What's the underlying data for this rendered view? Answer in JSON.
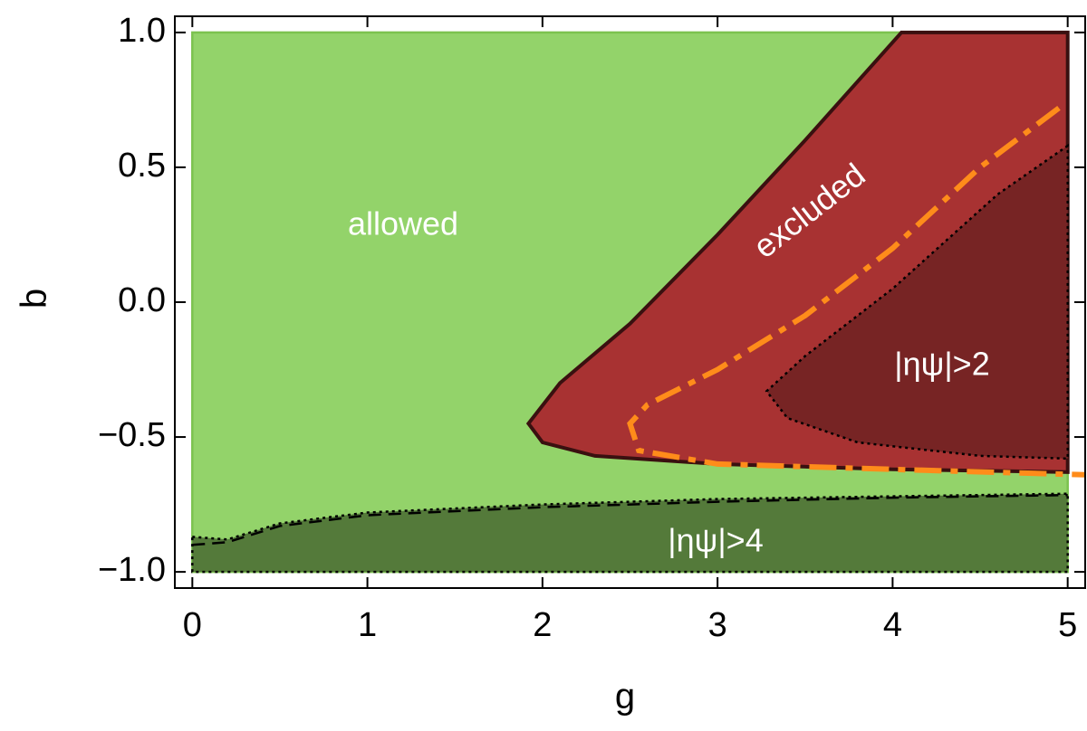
{
  "chart_data": {
    "type": "region",
    "xlabel": "g",
    "ylabel": "b",
    "xlim": [
      -0.1,
      5.1
    ],
    "ylim": [
      -1.06,
      1.06
    ],
    "xticks": [
      0,
      1,
      2,
      3,
      4,
      5
    ],
    "yticks": [
      {
        "value": -1,
        "label": "−1.0"
      },
      {
        "value": -0.5,
        "label": "−0.5"
      },
      {
        "value": 0,
        "label": "0.0"
      },
      0.5,
      {
        "value": 1,
        "label": "1.0"
      }
    ],
    "regions": [
      {
        "color": "#93d36a",
        "edge": "#7cc24f",
        "x": [
          0,
          5,
          5,
          0
        ],
        "y": [
          -1,
          -1,
          1,
          1
        ]
      },
      {
        "color": "#a83232",
        "edge": "#3a1010",
        "x": [
          4.05,
          3.5,
          3.0,
          2.5,
          2.1,
          1.92,
          2.0,
          2.3,
          3.0,
          4.0,
          5.0,
          5.0
        ],
        "y": [
          1.0,
          0.6,
          0.25,
          -0.08,
          -0.3,
          -0.45,
          -0.52,
          -0.57,
          -0.6,
          -0.62,
          -0.63,
          1.0
        ]
      },
      {
        "color": "#772424",
        "edge": "#000000",
        "x": [
          5.0,
          4.6,
          4.0,
          3.5,
          3.28,
          3.4,
          3.8,
          4.5,
          5.0
        ],
        "y": [
          0.58,
          0.4,
          0.05,
          -0.2,
          -0.33,
          -0.43,
          -0.52,
          -0.57,
          -0.58
        ]
      },
      {
        "color": "#547a3a",
        "edge": "#000000",
        "x": [
          0,
          0.2,
          0.5,
          1,
          2,
          3,
          4,
          5,
          5,
          0
        ],
        "y": [
          -0.87,
          -0.88,
          -0.82,
          -0.78,
          -0.75,
          -0.73,
          -0.72,
          -0.71,
          -1,
          -1
        ]
      }
    ],
    "lines": [
      {
        "color": "#ff8c1a",
        "style": "dashdot",
        "x": [
          4.95,
          4.5,
          4.0,
          3.5,
          3.0,
          2.6,
          2.5,
          2.55,
          3.0,
          4.0,
          5.1
        ],
        "y": [
          0.72,
          0.5,
          0.2,
          -0.05,
          -0.25,
          -0.38,
          -0.45,
          -0.55,
          -0.6,
          -0.62,
          -0.64
        ]
      },
      {
        "color": "#000000",
        "style": "dashed",
        "x": [
          0,
          0.2,
          0.5,
          1,
          2,
          3,
          4,
          5
        ],
        "y": [
          -0.9,
          -0.89,
          -0.83,
          -0.79,
          -0.76,
          -0.74,
          -0.725,
          -0.715
        ]
      }
    ],
    "annotations": [
      "allowed",
      "excluded",
      "|ηψ|>2",
      "|ηψ|>4"
    ]
  }
}
